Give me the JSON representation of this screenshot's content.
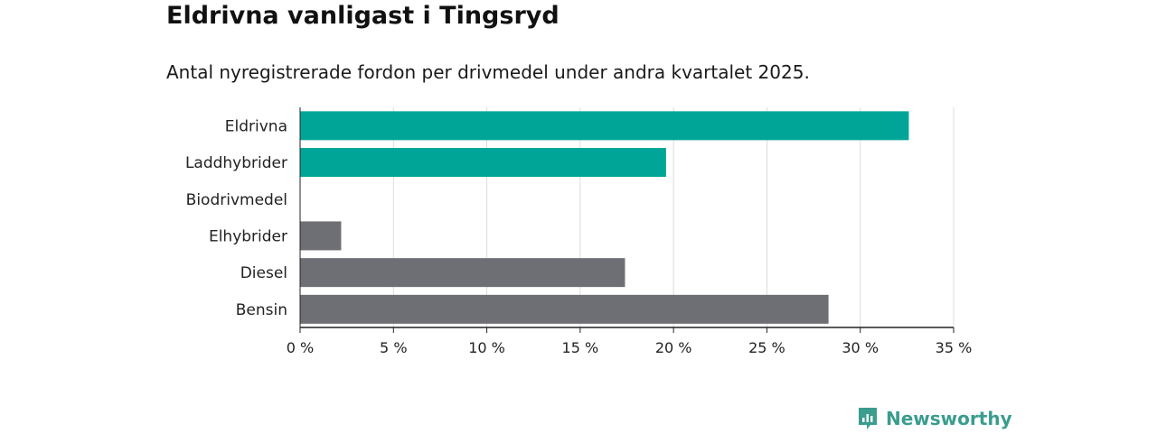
{
  "title": "Eldrivna vanligast i Tingsryd",
  "subtitle": "Antal nyregistrerade fordon per drivmedel under andra kvartalet 2025.",
  "brand": "Newsworthy",
  "colors": {
    "electric": "#00a598",
    "other": "#6e6e75",
    "grid": "#dcdcdc",
    "axis": "#222222",
    "brand": "#3a9d8e"
  },
  "chart_data": {
    "type": "bar",
    "orientation": "horizontal",
    "categories": [
      "Eldrivna",
      "Laddhybrider",
      "Biodrivmedel",
      "Elhybrider",
      "Diesel",
      "Bensin"
    ],
    "values": [
      32.6,
      19.6,
      0,
      2.2,
      17.4,
      28.3
    ],
    "bar_colors": [
      "electric",
      "electric",
      "other",
      "other",
      "other",
      "other"
    ],
    "xlim": [
      0,
      35
    ],
    "xticks": [
      0,
      5,
      10,
      15,
      20,
      25,
      30,
      35
    ],
    "xtick_labels": [
      "0 %",
      "5 %",
      "10 %",
      "15 %",
      "20 %",
      "25 %",
      "30 %",
      "35 %"
    ],
    "unit": "%",
    "grid": true
  }
}
